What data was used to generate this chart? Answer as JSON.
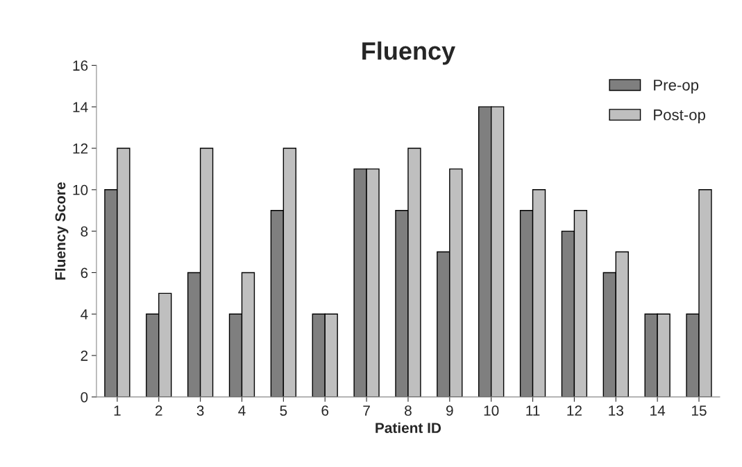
{
  "chart_data": {
    "type": "bar",
    "title": "Fluency",
    "xlabel": "Patient ID",
    "ylabel": "Fluency Score",
    "categories": [
      "1",
      "2",
      "3",
      "4",
      "5",
      "6",
      "7",
      "8",
      "9",
      "10",
      "11",
      "12",
      "13",
      "14",
      "15"
    ],
    "series": [
      {
        "name": "Pre-op",
        "color": "#7f7f7f",
        "values": [
          10,
          4,
          6,
          4,
          9,
          4,
          11,
          9,
          7,
          14,
          9,
          8,
          6,
          4,
          4
        ]
      },
      {
        "name": "Post-op",
        "color": "#bfbfbf",
        "values": [
          12,
          5,
          12,
          6,
          12,
          4,
          11,
          12,
          11,
          14,
          10,
          9,
          7,
          4,
          10
        ]
      }
    ],
    "ylim": [
      0,
      16
    ],
    "yticks": [
      0,
      2,
      4,
      6,
      8,
      10,
      12,
      14,
      16
    ],
    "grid": false,
    "legend": "top right"
  }
}
